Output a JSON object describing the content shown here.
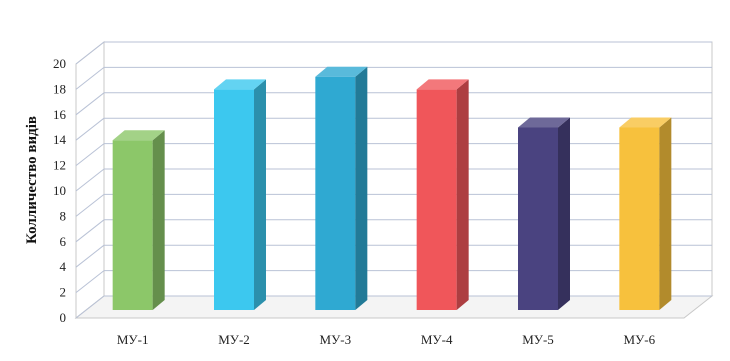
{
  "chart_data": {
    "type": "bar",
    "style": "3d-columns",
    "title": "",
    "xlabel": "",
    "ylabel": "Колличество видів",
    "ylim": [
      0,
      20
    ],
    "yticks": [
      0,
      2,
      4,
      6,
      8,
      10,
      12,
      14,
      16,
      18,
      20
    ],
    "grid": true,
    "legend": "none",
    "categories": [
      "МУ-1",
      "МУ-2",
      "МУ-3",
      "МУ-4",
      "МУ-5",
      "МУ-6"
    ],
    "values": [
      14,
      18,
      19,
      18,
      15,
      15
    ],
    "colors": [
      "#8cc769",
      "#3cc8ef",
      "#2fa9d2",
      "#f0565a",
      "#4a4380",
      "#f7c13d"
    ]
  }
}
